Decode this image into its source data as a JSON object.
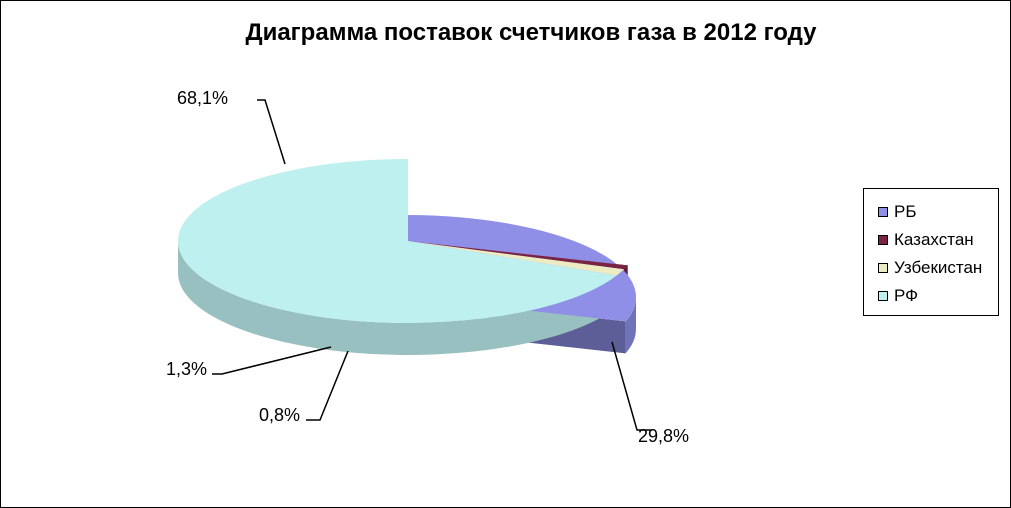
{
  "chart_data": {
    "type": "pie",
    "title": "Диаграмма поставок счетчиков газа в 2012 году",
    "slices": [
      {
        "name": "РБ",
        "value": 29.8,
        "label": "29,8%",
        "color": "#8f8fe8"
      },
      {
        "name": "Казахстан",
        "value": 0.8,
        "label": "0,8%",
        "color": "#7a2444"
      },
      {
        "name": "Узбекистан",
        "value": 1.3,
        "label": "1,3%",
        "color": "#ecebc2"
      },
      {
        "name": "РФ",
        "value": 68.1,
        "label": "68,1%",
        "color": "#bff0f0"
      }
    ],
    "legend_position": "right",
    "style": "3d-exploded"
  }
}
